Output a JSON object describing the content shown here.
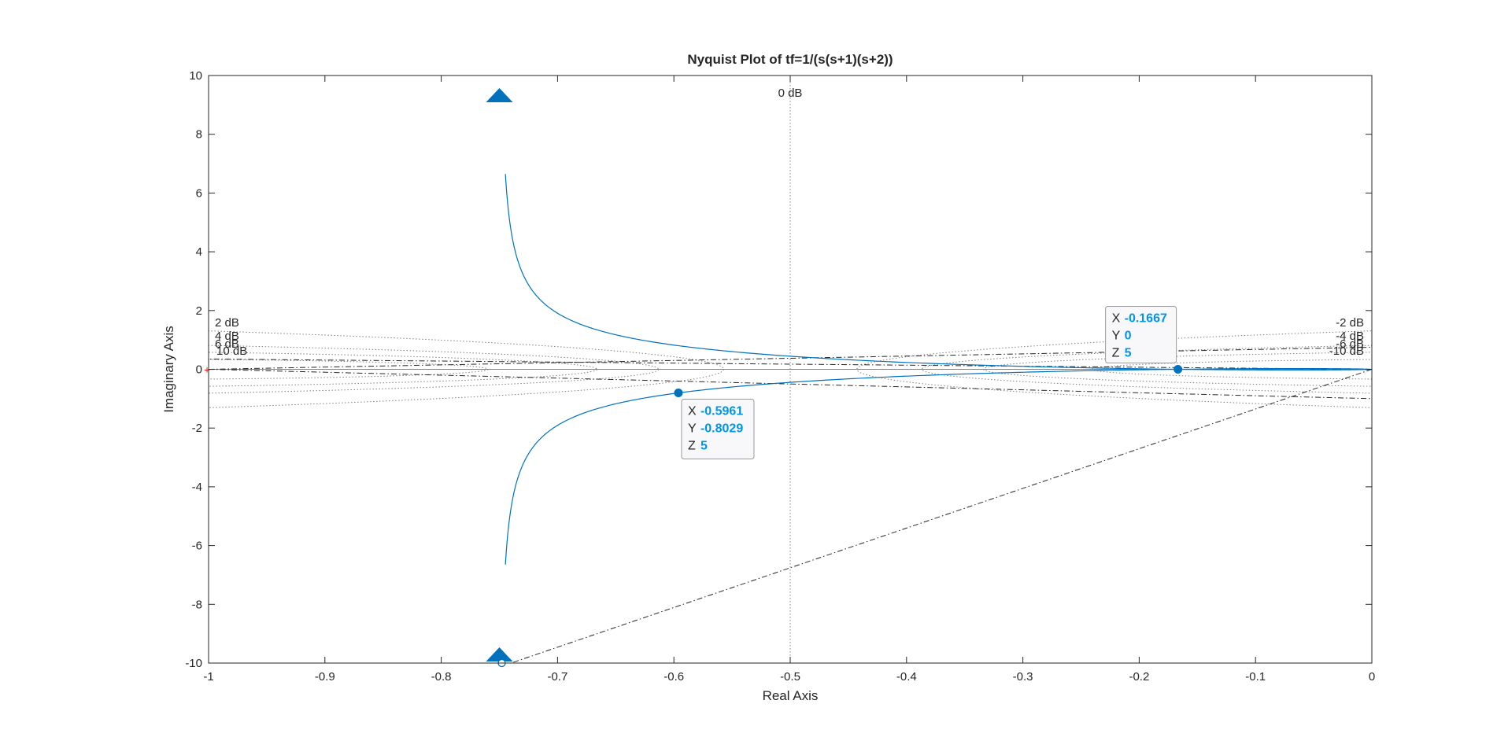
{
  "chart_data": {
    "type": "line",
    "title": "Nyquist Plot of tf=1/(s(s+1)(s+2))",
    "xlabel": "Real Axis",
    "ylabel": "Imaginary Axis",
    "xlim": [
      -1,
      0
    ],
    "ylim": [
      -10,
      10
    ],
    "xticks": [
      -1,
      -0.9,
      -0.8,
      -0.7,
      -0.6,
      -0.5,
      -0.4,
      -0.3,
      -0.2,
      -0.1,
      0
    ],
    "xtick_labels": [
      "-1",
      "-0.9",
      "-0.8",
      "-0.7",
      "-0.6",
      "-0.5",
      "-0.4",
      "-0.3",
      "-0.2",
      "-0.1",
      "0"
    ],
    "yticks": [
      -10,
      -8,
      -6,
      -4,
      -2,
      0,
      2,
      4,
      6,
      8,
      10
    ],
    "ytick_labels": [
      "-10",
      "-8",
      "-6",
      "-4",
      "-2",
      "0",
      "2",
      "4",
      "6",
      "8",
      "10"
    ],
    "grid": "M-circles (dotted)",
    "series_color": "#0072bd",
    "grid_color": "#808080",
    "critical_point_color": "#ff0000",
    "datatip_value_color": "#0095e5",
    "m_circle_labels": {
      "left": [
        "2 dB",
        "4 dB",
        "6 dB",
        "10 dB"
      ],
      "right": [
        "-2 dB",
        "-4 dB",
        "-6 dB",
        "-10 dB"
      ],
      "center": "0 dB"
    },
    "m_circles_db": [
      2,
      4,
      6,
      10,
      -2,
      -4,
      -6,
      -10
    ],
    "datatips": [
      {
        "x": -0.1667,
        "y": 0,
        "z": 5,
        "x_label": "-0.1667",
        "y_label": "0",
        "z_label": "5"
      },
      {
        "x": -0.5961,
        "y": -0.8029,
        "z": 5,
        "x_label": "-0.5961",
        "y_label": "-0.8029",
        "z_label": "5"
      }
    ],
    "datatip_keys": [
      "X",
      "Y",
      "Z"
    ],
    "dash_lines": [
      {
        "from": [
          0,
          0
        ],
        "to": [
          -0.74,
          -10
        ]
      },
      {
        "from": [
          -1,
          0
        ],
        "to": [
          0,
          0.75
        ]
      },
      {
        "from": [
          -1,
          0
        ],
        "to": [
          0,
          -1.0
        ]
      },
      {
        "from": [
          0,
          0
        ],
        "to": [
          -1,
          0.35
        ]
      }
    ]
  }
}
